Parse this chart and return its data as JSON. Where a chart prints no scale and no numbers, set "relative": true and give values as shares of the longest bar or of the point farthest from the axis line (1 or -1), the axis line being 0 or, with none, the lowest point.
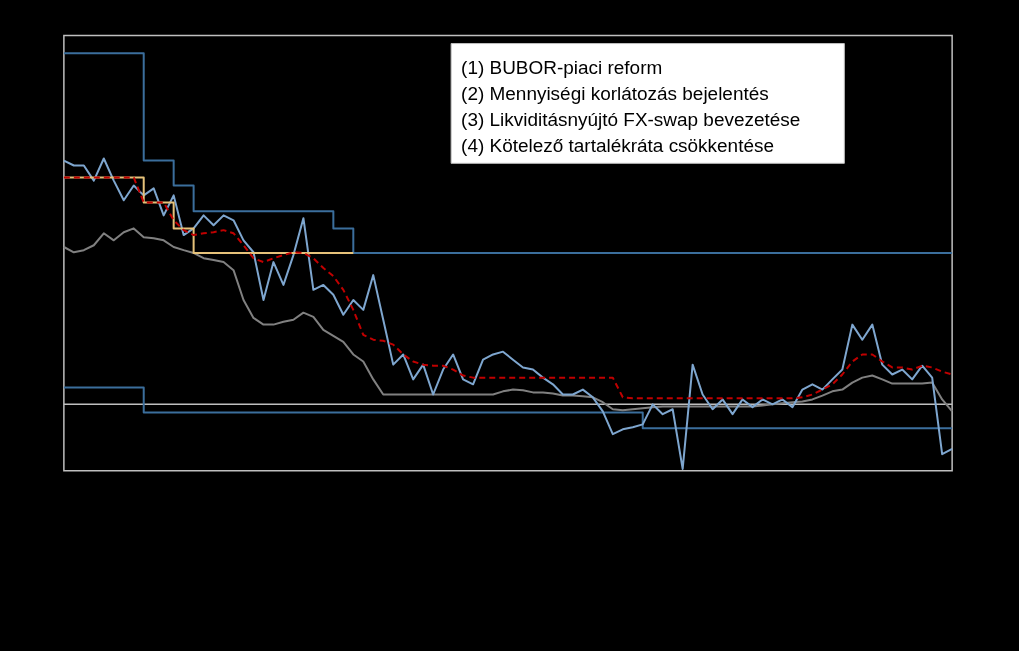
{
  "chart_data": {
    "type": "line",
    "relative": true,
    "legend": false,
    "grid": false,
    "categories": [
      null,
      null,
      null,
      null,
      null,
      null,
      null,
      null,
      null,
      null,
      null,
      null,
      null,
      null,
      null,
      null,
      null,
      null,
      null,
      null,
      null,
      null,
      null,
      null,
      null,
      null,
      null,
      null,
      null,
      null,
      null,
      null,
      null,
      null,
      null,
      null,
      null,
      null,
      null,
      null,
      null,
      null,
      null,
      null,
      null,
      null,
      null,
      null,
      null,
      null,
      null,
      null,
      null,
      null,
      null,
      null,
      null,
      null,
      null,
      null,
      null,
      null,
      null,
      null,
      null,
      null,
      null,
      null,
      null,
      null,
      null,
      null,
      null,
      null,
      null,
      null,
      null,
      null,
      null,
      null,
      null,
      null,
      null,
      null,
      null,
      null,
      null,
      null,
      null,
      null
    ],
    "series": [
      {
        "type": "step",
        "color": "#3b6e9c",
        "values": [
          1.0,
          1.0,
          1.0,
          1.0,
          1.0,
          1.0,
          1.0,
          1.0,
          0.694,
          0.694,
          0.694,
          0.623,
          0.623,
          0.55,
          0.55,
          0.55,
          0.55,
          0.55,
          0.55,
          0.55,
          0.55,
          0.55,
          0.55,
          0.55,
          0.55,
          0.55,
          0.55,
          0.501,
          0.501,
          0.431,
          0.431,
          0.431,
          0.431,
          0.431,
          0.431,
          0.431,
          0.431,
          0.431,
          0.431,
          0.431,
          0.431,
          0.431,
          0.431,
          0.431,
          0.431,
          0.431,
          0.431,
          0.431,
          0.431,
          0.431,
          0.431,
          0.431,
          0.431,
          0.431,
          0.431,
          0.431,
          0.431,
          0.431,
          0.431,
          0.431,
          0.431,
          0.431,
          0.431,
          0.431,
          0.431,
          0.431,
          0.431,
          0.431,
          0.431,
          0.431,
          0.431,
          0.431,
          0.431,
          0.431,
          0.431,
          0.431,
          0.431,
          0.431,
          0.431,
          0.431,
          0.431,
          0.431,
          0.431,
          0.431,
          0.431,
          0.431,
          0.431,
          0.431,
          0.431,
          0.431
        ]
      },
      {
        "type": "step",
        "color": "#3b6e9c",
        "values": [
          0.048,
          0.048,
          0.048,
          0.048,
          0.048,
          0.048,
          0.048,
          0.048,
          -0.023,
          -0.023,
          -0.023,
          -0.023,
          -0.023,
          -0.023,
          -0.023,
          -0.023,
          -0.023,
          -0.023,
          -0.023,
          -0.023,
          -0.023,
          -0.023,
          -0.023,
          -0.023,
          -0.023,
          -0.023,
          -0.023,
          -0.023,
          -0.023,
          -0.023,
          -0.023,
          -0.023,
          -0.023,
          -0.023,
          -0.023,
          -0.023,
          -0.023,
          -0.023,
          -0.023,
          -0.023,
          -0.023,
          -0.023,
          -0.023,
          -0.023,
          -0.023,
          -0.023,
          -0.023,
          -0.023,
          -0.023,
          -0.023,
          -0.023,
          -0.023,
          -0.023,
          -0.023,
          -0.023,
          -0.023,
          -0.023,
          -0.023,
          -0.068,
          -0.068,
          -0.068,
          -0.068,
          -0.068,
          -0.068,
          -0.068,
          -0.068,
          -0.068,
          -0.068,
          -0.068,
          -0.068,
          -0.068,
          -0.068,
          -0.068,
          -0.068,
          -0.068,
          -0.068,
          -0.068,
          -0.068,
          -0.068,
          -0.068,
          -0.068,
          -0.068,
          -0.068,
          -0.068,
          -0.068,
          -0.068,
          -0.068,
          -0.068,
          -0.068,
          -0.068
        ]
      },
      {
        "type": "line",
        "color": "#808080",
        "values": [
          0.448,
          0.433,
          0.439,
          0.453,
          0.487,
          0.467,
          0.49,
          0.501,
          0.476,
          0.473,
          0.467,
          0.448,
          0.439,
          0.431,
          0.416,
          0.411,
          0.405,
          0.382,
          0.297,
          0.246,
          0.227,
          0.227,
          0.235,
          0.241,
          0.261,
          0.249,
          0.212,
          0.195,
          0.178,
          0.142,
          0.122,
          0.071,
          0.028,
          0.028,
          0.028,
          0.028,
          0.028,
          0.028,
          0.028,
          0.028,
          0.028,
          0.028,
          0.028,
          0.028,
          0.037,
          0.042,
          0.04,
          0.034,
          0.034,
          0.031,
          0.025,
          0.025,
          0.023,
          0.02,
          0.006,
          -0.014,
          -0.017,
          -0.014,
          -0.011,
          -0.008,
          -0.006,
          -0.006,
          -0.006,
          -0.006,
          -0.006,
          -0.006,
          -0.006,
          -0.006,
          -0.006,
          -0.006,
          -0.003,
          0.0,
          0.003,
          0.006,
          0.008,
          0.014,
          0.025,
          0.037,
          0.042,
          0.062,
          0.076,
          0.082,
          0.071,
          0.059,
          0.059,
          0.059,
          0.059,
          0.062,
          0.014,
          -0.02
        ]
      },
      {
        "type": "line",
        "color": "#7ea6cf",
        "values": [
          0.694,
          0.68,
          0.68,
          0.637,
          0.7,
          0.637,
          0.581,
          0.623,
          0.595,
          0.615,
          0.538,
          0.595,
          0.482,
          0.501,
          0.538,
          0.51,
          0.538,
          0.524,
          0.467,
          0.433,
          0.297,
          0.405,
          0.34,
          0.425,
          0.53,
          0.326,
          0.34,
          0.312,
          0.255,
          0.297,
          0.269,
          0.368,
          0.241,
          0.113,
          0.142,
          0.071,
          0.113,
          0.028,
          0.099,
          0.142,
          0.071,
          0.057,
          0.127,
          0.142,
          0.15,
          0.127,
          0.105,
          0.099,
          0.076,
          0.057,
          0.028,
          0.028,
          0.042,
          0.02,
          -0.02,
          -0.085,
          -0.071,
          -0.065,
          -0.057,
          0.0,
          -0.028,
          -0.014,
          -0.184,
          0.113,
          0.028,
          -0.014,
          0.014,
          -0.028,
          0.014,
          -0.008,
          0.014,
          0.0,
          0.014,
          -0.008,
          0.042,
          0.057,
          0.042,
          0.071,
          0.099,
          0.227,
          0.184,
          0.227,
          0.113,
          0.085,
          0.099,
          0.071,
          0.11,
          0.076,
          -0.142,
          -0.127
        ]
      },
      {
        "type": "step",
        "color": "#e6c27a",
        "values": [
          0.646,
          0.646,
          0.646,
          0.646,
          0.646,
          0.646,
          0.646,
          0.646,
          0.575,
          0.575,
          0.575,
          0.501,
          0.501,
          0.431,
          0.431,
          0.431,
          0.431,
          0.431,
          0.431,
          0.431,
          0.431,
          0.431,
          0.431,
          0.431,
          0.431,
          0.431,
          0.431,
          0.431,
          0.431,
          0.431,
          null,
          null,
          null,
          null,
          null,
          null,
          null,
          null,
          null,
          null,
          null,
          null,
          null,
          null,
          null,
          null,
          null,
          null,
          null,
          null,
          null,
          null,
          null,
          null,
          null,
          null,
          null,
          null,
          null,
          null,
          null,
          null,
          null,
          null,
          null,
          null,
          null,
          null,
          null,
          null,
          null,
          null,
          null,
          null,
          null,
          null,
          null,
          null,
          null,
          null,
          null,
          null,
          null,
          null,
          null,
          null,
          null,
          null,
          null,
          null
        ]
      },
      {
        "type": "line",
        "color": "#c00000",
        "line_style": "dashed",
        "values": [
          0.646,
          0.646,
          0.646,
          0.646,
          0.646,
          0.646,
          0.646,
          0.646,
          0.575,
          0.575,
          0.575,
          0.524,
          0.496,
          0.482,
          0.487,
          0.49,
          0.496,
          0.487,
          0.453,
          0.416,
          0.405,
          0.416,
          0.425,
          0.433,
          0.431,
          0.416,
          0.388,
          0.365,
          0.326,
          0.269,
          0.198,
          0.184,
          0.181,
          0.17,
          0.142,
          0.122,
          0.113,
          0.11,
          0.11,
          0.099,
          0.082,
          0.076,
          0.076,
          0.076,
          0.076,
          0.076,
          0.076,
          0.076,
          0.076,
          0.076,
          0.076,
          0.076,
          0.076,
          0.076,
          0.076,
          0.076,
          0.02,
          0.017,
          0.017,
          0.017,
          0.017,
          0.017,
          0.017,
          0.017,
          0.017,
          0.017,
          0.017,
          0.017,
          0.017,
          0.017,
          0.017,
          0.017,
          0.017,
          0.017,
          0.02,
          0.028,
          0.042,
          0.057,
          0.085,
          0.122,
          0.142,
          0.142,
          0.122,
          0.105,
          0.105,
          0.099,
          0.11,
          0.105,
          0.093,
          0.085
        ]
      }
    ],
    "ref_lines": [
      {
        "axis": "y",
        "value": 0,
        "color": "#bfbfbf"
      }
    ],
    "annotations": [
      "(1) BUBOR-piaci reform",
      "(2) Mennyiségi korlátozás bejelentés",
      "(3) Likviditásnyújtó FX-swap bevezetése",
      "(4) Kötelező tartalékráta csökkentése"
    ]
  }
}
